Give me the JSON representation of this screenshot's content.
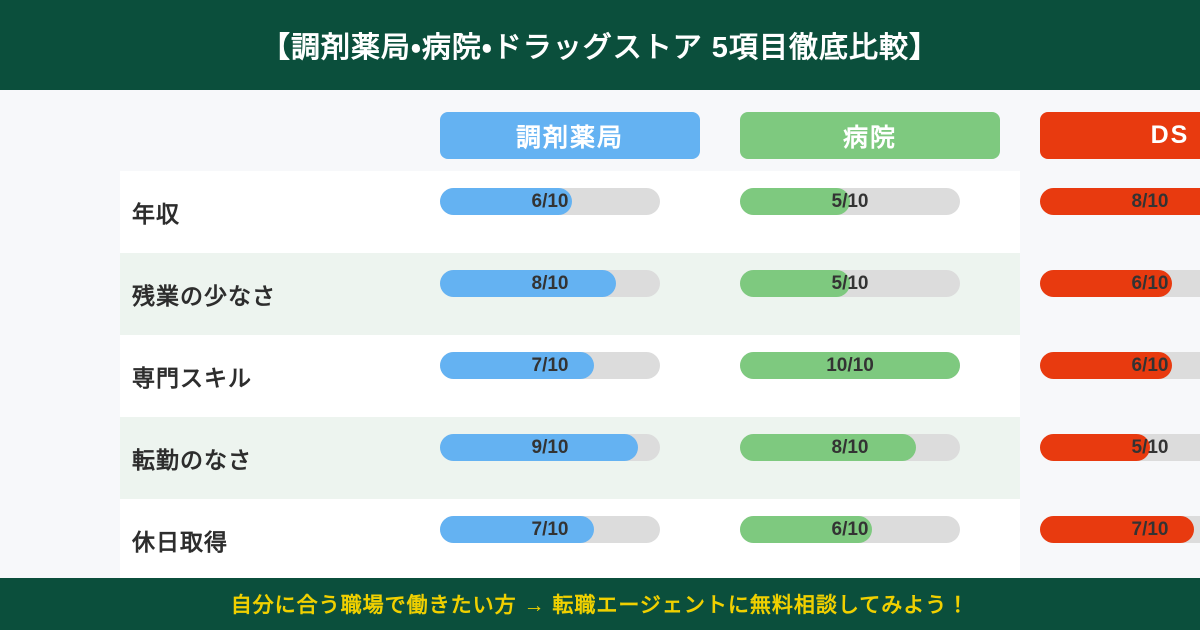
{
  "title": "【調剤薬局・病院・ドラッグストア 5項目徹底比較】",
  "columns": [
    {
      "id": "pharmacy",
      "label": "調剤薬局",
      "color": "#64b2f2"
    },
    {
      "id": "hospital",
      "label": "病院",
      "color": "#7ec97f"
    },
    {
      "id": "drugstore",
      "label": "DS",
      "color": "#e83a0f"
    }
  ],
  "rows": [
    {
      "label": "年収",
      "bars": [
        {
          "value": 6,
          "max": 10,
          "text": "6/10"
        },
        {
          "value": 5,
          "max": 10,
          "text": "5/10"
        },
        {
          "value": 8,
          "max": 10,
          "text": "8/10"
        }
      ]
    },
    {
      "label": "残業の少なさ",
      "bars": [
        {
          "value": 8,
          "max": 10,
          "text": "8/10"
        },
        {
          "value": 5,
          "max": 10,
          "text": "5/10"
        },
        {
          "value": 6,
          "max": 10,
          "text": "6/10"
        }
      ]
    },
    {
      "label": "専門スキル",
      "bars": [
        {
          "value": 7,
          "max": 10,
          "text": "7/10"
        },
        {
          "value": 10,
          "max": 10,
          "text": "10/10"
        },
        {
          "value": 6,
          "max": 10,
          "text": "6/10"
        }
      ]
    },
    {
      "label": "転勤のなさ",
      "bars": [
        {
          "value": 9,
          "max": 10,
          "text": "9/10"
        },
        {
          "value": 8,
          "max": 10,
          "text": "8/10"
        },
        {
          "value": 5,
          "max": 10,
          "text": "5/10"
        }
      ]
    },
    {
      "label": "休日取得",
      "bars": [
        {
          "value": 7,
          "max": 10,
          "text": "7/10"
        },
        {
          "value": 6,
          "max": 10,
          "text": "6/10"
        },
        {
          "value": 7,
          "max": 10,
          "text": "7/10"
        }
      ]
    }
  ],
  "footer": {
    "text": "自分に合う職場で働きたい方 → 転職エージェントに無料相談してみよう！"
  },
  "colors": {
    "banner-green": "#0b4f3c",
    "body-bg": "#f7f8fa",
    "row-white": "#ffffff",
    "row-green": "#edf4ef",
    "track": "#dcdcdc",
    "blue": "#64b2f2",
    "green": "#7ec97f",
    "red": "#e83a0f",
    "cta-yellow": "#f0d000"
  },
  "chart_data": {
    "type": "bar",
    "title": "【調剤薬局・病院・ドラッグストア 5項目徹底比較】",
    "categories": [
      "年収",
      "残業の少なさ",
      "専門スキル",
      "転勤のなさ",
      "休日取得"
    ],
    "series": [
      {
        "name": "調剤薬局",
        "values": [
          6,
          8,
          7,
          9,
          7
        ]
      },
      {
        "name": "病院",
        "values": [
          5,
          5,
          10,
          8,
          6
        ]
      },
      {
        "name": "DS",
        "values": [
          8,
          6,
          6,
          5,
          7
        ]
      }
    ],
    "value_range": [
      0,
      10
    ],
    "value_label_format": "N/10",
    "orientation": "horizontal",
    "legend_position": "top",
    "grid": false,
    "annotation": "自分に合う職場で働きたい方 → 転職エージェントに無料相談してみよう！"
  }
}
